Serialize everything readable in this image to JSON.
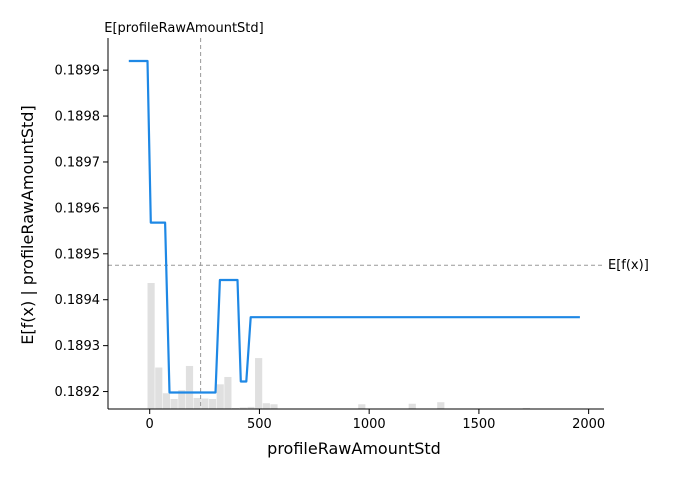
{
  "chart_data": {
    "type": "line",
    "xlabel": "profileRawAmountStd",
    "ylabel": "E[f(x) | profileRawAmountStd]",
    "xlim": [
      -190,
      2070
    ],
    "ylim": [
      0.189162,
      0.18997
    ],
    "x_ticks": [
      0,
      500,
      1000,
      1500,
      2000
    ],
    "y_ticks": [
      0.1892,
      0.1893,
      0.1894,
      0.1895,
      0.1896,
      0.1897,
      0.1898,
      0.1899
    ],
    "x_tick_labels": [
      "0",
      "500",
      "1000",
      "1500",
      "2000"
    ],
    "y_tick_labels": [
      "0.1892",
      "0.1893",
      "0.1894",
      "0.1895",
      "0.1896",
      "0.1897",
      "0.1898",
      "0.1899"
    ],
    "grid": false,
    "line_color": "#1e88e5",
    "hist_color": "#e0e0e0",
    "ref_color": "#999999",
    "series": [
      {
        "x": [
          -95,
          -10,
          5,
          70,
          90,
          300,
          320,
          400,
          415,
          440,
          460,
          1960
        ],
        "y": [
          0.18992,
          0.18992,
          0.189568,
          0.189568,
          0.189198,
          0.189198,
          0.189443,
          0.189443,
          0.189222,
          0.189222,
          0.189362,
          0.189362
        ]
      }
    ],
    "histogram": {
      "bin_starts": [
        -10,
        25,
        60,
        95,
        130,
        165,
        200,
        235,
        270,
        305,
        340,
        375,
        410,
        445,
        480,
        515,
        550,
        950,
        1180,
        1310,
        1700
      ],
      "bin_width": 35,
      "values": [
        0.24,
        0.079,
        0.03,
        0.019,
        0.036,
        0.082,
        0.021,
        0.02,
        0.019,
        0.047,
        0.061,
        0.002,
        0.003,
        0.004,
        0.097,
        0.011,
        0.009,
        0.009,
        0.01,
        0.013,
        0.002
      ],
      "max_fraction": 0.24
    },
    "ref_lines": {
      "x_value": 232,
      "x_label": "E[profileRawAmountStd]",
      "y_value": 0.189475,
      "y_label": "E[f(x)]"
    }
  }
}
